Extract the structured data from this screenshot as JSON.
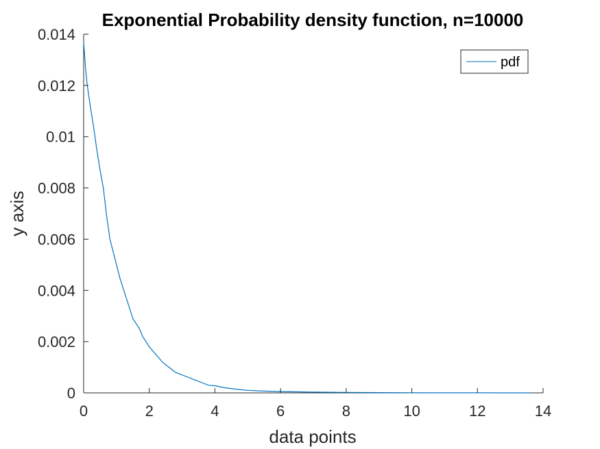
{
  "chart_data": {
    "type": "line",
    "title": "Exponential Probability density function, n=10000",
    "xlabel": "data points",
    "ylabel": "y axis",
    "xlim": [
      0,
      14
    ],
    "ylim": [
      0,
      0.014
    ],
    "x_ticks": [
      0,
      2,
      4,
      6,
      8,
      10,
      12,
      14
    ],
    "x_tick_labels": [
      "0",
      "2",
      "4",
      "6",
      "8",
      "10",
      "12",
      "14"
    ],
    "y_ticks": [
      0,
      0.002,
      0.004,
      0.006,
      0.008,
      0.01,
      0.012,
      0.014
    ],
    "y_tick_labels": [
      "0",
      "0.002",
      "0.004",
      "0.006",
      "0.008",
      "0.01",
      "0.012",
      "0.014"
    ],
    "grid": false,
    "legend_position": "top-right",
    "series": [
      {
        "name": "pdf",
        "color": "#0072BD",
        "x": [
          0,
          0.05,
          0.1,
          0.2,
          0.3,
          0.4,
          0.5,
          0.6,
          0.7,
          0.8,
          0.9,
          1.0,
          1.1,
          1.2,
          1.3,
          1.4,
          1.5,
          1.6,
          1.7,
          1.8,
          1.9,
          2.0,
          2.2,
          2.4,
          2.6,
          2.8,
          3.0,
          3.2,
          3.4,
          3.6,
          3.8,
          4.0,
          4.3,
          4.6,
          5.0,
          5.5,
          6.0,
          6.5,
          7.0,
          8.0,
          9.0,
          10.0,
          11.0,
          12.0,
          13.0,
          13.6
        ],
        "values": [
          0.0137,
          0.0128,
          0.0121,
          0.0112,
          0.0104,
          0.0095,
          0.0087,
          0.008,
          0.0069,
          0.006,
          0.0055,
          0.005,
          0.0045,
          0.0041,
          0.0037,
          0.0033,
          0.0029,
          0.0027,
          0.0025,
          0.0022,
          0.002,
          0.0018,
          0.0015,
          0.0012,
          0.001,
          0.0008,
          0.0007,
          0.0006,
          0.0005,
          0.0004,
          0.0003,
          0.00028,
          0.0002,
          0.00015,
          0.0001,
          7e-05,
          5e-05,
          4e-05,
          3e-05,
          2e-05,
          1e-05,
          5e-06,
          3e-06,
          2e-06,
          1e-06,
          0.0
        ]
      }
    ]
  }
}
